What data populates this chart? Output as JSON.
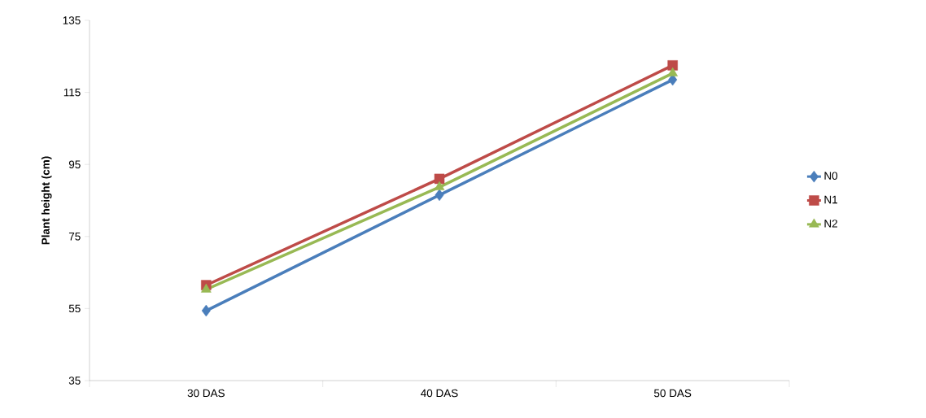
{
  "chart_data": {
    "type": "line",
    "ylabel": "Plant height (cm)",
    "categories": [
      "30 DAS",
      "40 DAS",
      "50 DAS"
    ],
    "series": [
      {
        "name": "N0",
        "color": "#4a7ebb",
        "marker": "diamond",
        "values": [
          54.4,
          86.5,
          118.5
        ]
      },
      {
        "name": "N1",
        "color": "#be4b48",
        "marker": "square",
        "values": [
          61.5,
          91,
          122.5
        ]
      },
      {
        "name": "N2",
        "color": "#98b954",
        "marker": "triangle",
        "values": [
          60.3,
          88.7,
          120.3
        ]
      }
    ],
    "ylim": [
      35,
      135
    ],
    "yticks": [
      35,
      55,
      75,
      95,
      115,
      135
    ],
    "grid": false,
    "legend": "right",
    "line_style": "solid"
  }
}
